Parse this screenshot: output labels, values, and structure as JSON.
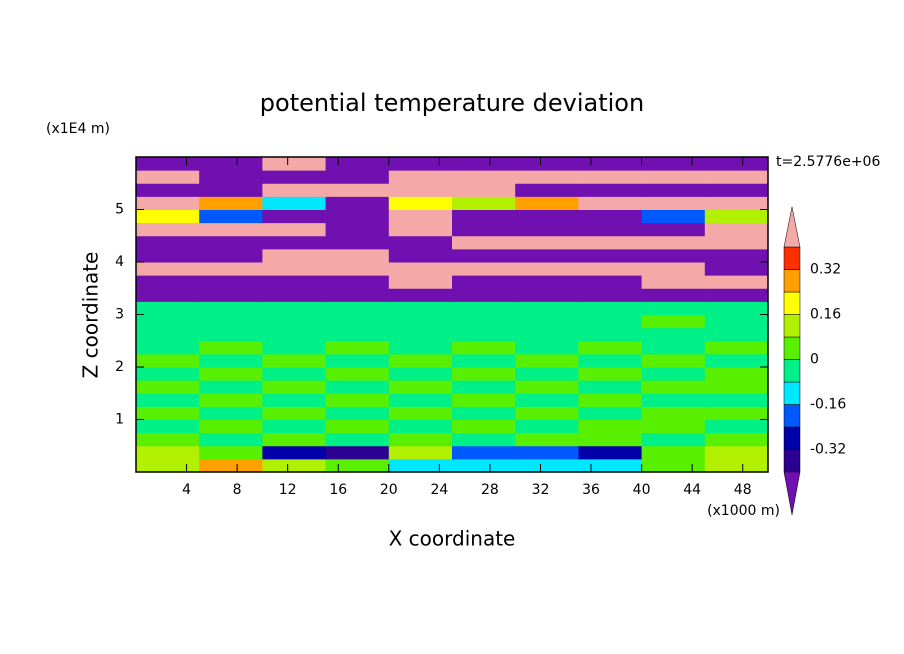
{
  "chart_data": {
    "type": "contour",
    "title": "potential temperature deviation",
    "x_label": "X coordinate",
    "y_label": "Z coordinate",
    "x_unit": "(x1000 m)",
    "y_unit": "(x1E4 m)",
    "time_label": "t=2.5776e+06",
    "xlim": [
      0,
      50
    ],
    "ylim": [
      0,
      6
    ],
    "xticks": [
      4,
      8,
      12,
      16,
      20,
      24,
      28,
      32,
      36,
      40,
      44,
      48
    ],
    "yticks": [
      1,
      2,
      3,
      4,
      5
    ],
    "levels": [
      -0.4,
      -0.32,
      -0.24,
      -0.16,
      -0.08,
      0,
      0.08,
      0.16,
      0.24,
      0.32,
      0.4
    ],
    "colors": [
      "#2c0090",
      "#0000a8",
      "#0058ff",
      "#00e8ff",
      "#00f088",
      "#58f000",
      "#b0f000",
      "#ffff00",
      "#ffa000",
      "#ff3000"
    ],
    "under_color": "#7010b0",
    "over_color": "#f4a8a8",
    "colorbar_ticks": [
      -0.32,
      -0.16,
      0,
      0.16,
      0.32
    ],
    "x": [
      2.5,
      7.5,
      12.5,
      17.5,
      22.5,
      27.5,
      32.5,
      37.5,
      42.5,
      47.5
    ],
    "y": [
      0.125,
      0.375,
      0.625,
      0.875,
      1.125,
      1.375,
      1.625,
      1.875,
      2.125,
      2.375,
      2.625,
      2.875,
      3.125,
      3.375,
      3.625,
      3.875,
      4.125,
      4.375,
      4.625,
      4.875,
      5.125,
      5.375,
      5.625,
      5.875
    ],
    "z": [
      [
        0.1,
        0.3,
        0.12,
        0.05,
        -0.12,
        -0.14,
        -0.1,
        -0.12,
        0.05,
        0.1
      ],
      [
        0.15,
        0.05,
        -0.3,
        -0.35,
        0.1,
        -0.2,
        -0.2,
        -0.3,
        0.05,
        0.1
      ],
      [
        0.02,
        -0.02,
        0.03,
        -0.03,
        0.02,
        -0.02,
        0.03,
        0.02,
        -0.02,
        0.03
      ],
      [
        -0.03,
        0.02,
        -0.02,
        0.03,
        -0.03,
        0.02,
        -0.02,
        0.03,
        0.02,
        -0.03
      ],
      [
        0.03,
        -0.03,
        0.02,
        -0.02,
        0.03,
        -0.03,
        0.02,
        -0.02,
        0.03,
        0.02
      ],
      [
        -0.02,
        0.03,
        -0.03,
        0.02,
        -0.02,
        0.03,
        -0.03,
        0.02,
        -0.02,
        -0.03
      ],
      [
        0.02,
        -0.02,
        0.03,
        -0.03,
        0.02,
        -0.02,
        0.03,
        -0.03,
        0.02,
        0.03
      ],
      [
        -0.03,
        0.02,
        -0.02,
        0.03,
        -0.03,
        0.02,
        -0.02,
        0.03,
        -0.03,
        0.02
      ],
      [
        0.03,
        -0.03,
        0.02,
        -0.02,
        0.03,
        -0.03,
        0.02,
        -0.02,
        0.03,
        -0.02
      ],
      [
        -0.02,
        0.03,
        -0.03,
        0.02,
        -0.02,
        0.03,
        -0.03,
        0.02,
        -0.02,
        0.03
      ],
      [
        -0.03,
        -0.02,
        -0.03,
        -0.02,
        -0.03,
        -0.02,
        -0.03,
        -0.02,
        -0.03,
        -0.02
      ],
      [
        -0.02,
        -0.03,
        -0.02,
        -0.03,
        -0.02,
        -0.03,
        -0.02,
        -0.03,
        0.02,
        -0.03
      ],
      [
        -0.03,
        -0.02,
        -0.03,
        -0.02,
        -0.03,
        -0.02,
        -0.03,
        -0.02,
        -0.03,
        -0.02
      ],
      [
        -0.5,
        -0.5,
        -0.5,
        -0.5,
        -0.5,
        -0.5,
        -0.5,
        -0.5,
        -0.5,
        -0.5
      ],
      [
        -0.5,
        -0.5,
        -0.5,
        -0.5,
        0.5,
        -0.5,
        -0.5,
        -0.5,
        0.5,
        0.5
      ],
      [
        0.5,
        0.5,
        0.5,
        0.5,
        0.5,
        0.5,
        0.5,
        0.5,
        0.5,
        -0.5
      ],
      [
        -0.5,
        -0.5,
        0.5,
        0.5,
        -0.5,
        -0.5,
        -0.5,
        -0.5,
        -0.5,
        -0.5
      ],
      [
        -0.5,
        -0.5,
        -0.5,
        -0.5,
        -0.5,
        0.5,
        0.5,
        0.5,
        0.5,
        0.5
      ],
      [
        0.5,
        0.5,
        0.5,
        -0.5,
        0.5,
        -0.5,
        -0.5,
        -0.5,
        -0.5,
        0.5
      ],
      [
        0.2,
        -0.2,
        -0.5,
        -0.5,
        0.4,
        -0.5,
        -0.5,
        -0.5,
        -0.2,
        0.1
      ],
      [
        0.5,
        0.3,
        -0.1,
        -0.5,
        0.2,
        0.1,
        0.3,
        0.5,
        0.5,
        0.5
      ],
      [
        -0.5,
        -0.5,
        0.5,
        0.5,
        0.5,
        0.5,
        -0.5,
        -0.5,
        -0.5,
        -0.5
      ],
      [
        0.5,
        -0.5,
        -0.5,
        -0.5,
        0.5,
        0.5,
        0.5,
        0.5,
        0.5,
        0.5
      ],
      [
        -0.5,
        -0.5,
        0.5,
        -0.5,
        -0.5,
        -0.5,
        -0.5,
        -0.5,
        -0.5,
        -0.5
      ]
    ]
  }
}
